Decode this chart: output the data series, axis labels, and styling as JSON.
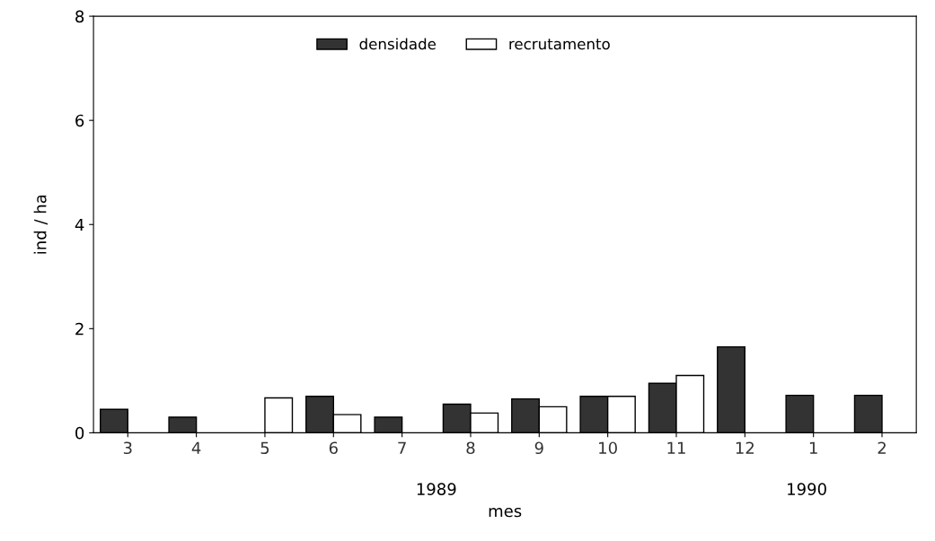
{
  "chart_data": {
    "type": "bar",
    "xlabel": "mes",
    "ylabel": "ind / ha",
    "categories": [
      "3",
      "4",
      "5",
      "6",
      "7",
      "8",
      "9",
      "10",
      "11",
      "12",
      "1",
      "2"
    ],
    "series": [
      {
        "name": "densidade",
        "color": "#333333",
        "values": [
          0.45,
          0.3,
          null,
          0.7,
          0.3,
          0.55,
          0.65,
          0.7,
          0.95,
          1.65,
          0.72,
          0.72
        ]
      },
      {
        "name": "recrutamento",
        "color": "#ffffff",
        "values": [
          null,
          null,
          0.67,
          0.35,
          null,
          0.38,
          0.5,
          0.7,
          1.1,
          null,
          null,
          null
        ]
      }
    ],
    "ylim": [
      0,
      8
    ],
    "yticks": [
      0,
      2,
      4,
      6,
      8
    ],
    "legend": "top",
    "grid": false,
    "annotations": [
      "1989",
      "1990"
    ]
  }
}
